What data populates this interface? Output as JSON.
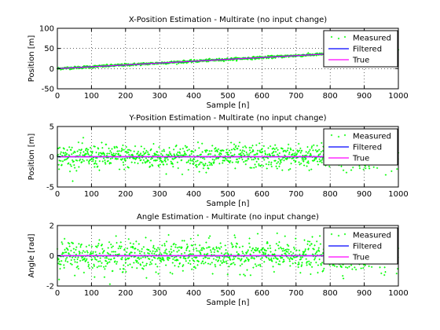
{
  "chart_data": [
    {
      "type": "scatter",
      "title": "X-Position Estimation - Multirate (no input change)",
      "xlabel": "Sample [n]",
      "ylabel": "Position [m]",
      "xlim": [
        0,
        1000
      ],
      "ylim": [
        -50,
        100
      ],
      "xticks": [
        "0",
        "100",
        "200",
        "300",
        "400",
        "500",
        "600",
        "700",
        "800",
        "900",
        "1000"
      ],
      "yticks": [
        "-50",
        "0",
        "50",
        "100"
      ],
      "grid": true,
      "legend_position": "top-right",
      "legend": [
        "Measured",
        "Filtered",
        "True"
      ],
      "colors": {
        "measured": "#00ff00",
        "filtered": "#0000ff",
        "true": "#ff00ff"
      },
      "series": [
        {
          "name": "Measured",
          "kind": "points",
          "trend": [
            [
              0,
              0
            ],
            [
              1000,
              46
            ]
          ],
          "noise_sd": 1.5,
          "count": 1000
        },
        {
          "name": "Filtered",
          "kind": "line",
          "x": [
            0,
            1000
          ],
          "y": [
            0,
            46
          ]
        },
        {
          "name": "True",
          "kind": "line",
          "x": [
            0,
            1000
          ],
          "y": [
            0,
            46
          ]
        }
      ]
    },
    {
      "type": "scatter",
      "title": "Y-Position Estimation - Multirate (no input change)",
      "xlabel": "Sample [n]",
      "ylabel": "Position [m]",
      "xlim": [
        0,
        1000
      ],
      "ylim": [
        -5,
        5
      ],
      "xticks": [
        "0",
        "100",
        "200",
        "300",
        "400",
        "500",
        "600",
        "700",
        "800",
        "900",
        "1000"
      ],
      "yticks": [
        "-5",
        "0",
        "5"
      ],
      "grid": true,
      "legend_position": "top-right",
      "legend": [
        "Measured",
        "Filtered",
        "True"
      ],
      "colors": {
        "measured": "#00ff00",
        "filtered": "#0000ff",
        "true": "#ff00ff"
      },
      "series": [
        {
          "name": "Measured",
          "kind": "points",
          "trend": [
            [
              0,
              0
            ],
            [
              1000,
              0
            ]
          ],
          "noise_sd": 1.0,
          "count": 1000
        },
        {
          "name": "Filtered",
          "kind": "line",
          "x": [
            0,
            1000
          ],
          "y": [
            0,
            0
          ]
        },
        {
          "name": "True",
          "kind": "line",
          "x": [
            0,
            1000
          ],
          "y": [
            0,
            0
          ]
        }
      ]
    },
    {
      "type": "scatter",
      "title": "Angle Estimation - Multirate (no input change)",
      "xlabel": "Sample [n]",
      "ylabel": "Angle [rad]",
      "xlim": [
        0,
        1000
      ],
      "ylim": [
        -2,
        2
      ],
      "xticks": [
        "0",
        "100",
        "200",
        "300",
        "400",
        "500",
        "600",
        "700",
        "800",
        "900",
        "1000"
      ],
      "yticks": [
        "-2",
        "0",
        "2"
      ],
      "grid": true,
      "legend_position": "top-right",
      "legend": [
        "Measured",
        "Filtered",
        "True"
      ],
      "colors": {
        "measured": "#00ff00",
        "filtered": "#0000ff",
        "true": "#ff00ff"
      },
      "series": [
        {
          "name": "Measured",
          "kind": "points",
          "trend": [
            [
              0,
              0
            ],
            [
              1000,
              0
            ]
          ],
          "noise_sd": 0.5,
          "count": 1000
        },
        {
          "name": "Filtered",
          "kind": "line",
          "x": [
            0,
            1000
          ],
          "y": [
            0,
            0
          ]
        },
        {
          "name": "True",
          "kind": "line",
          "x": [
            0,
            1000
          ],
          "y": [
            0,
            0
          ]
        }
      ]
    }
  ]
}
